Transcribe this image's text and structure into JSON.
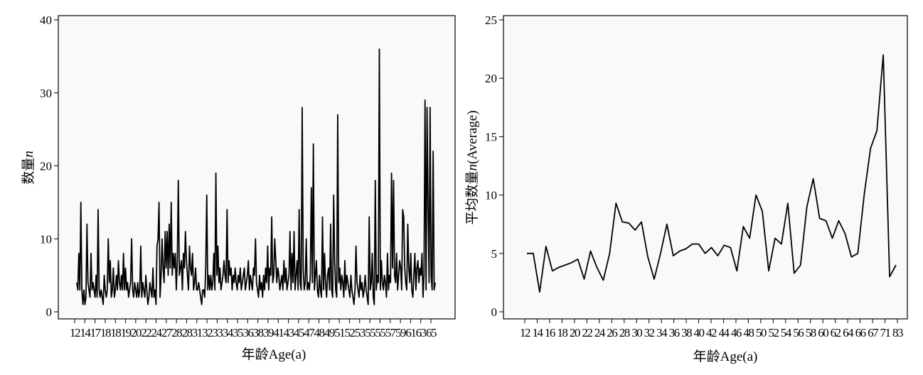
{
  "chart_data": [
    {
      "type": "line",
      "xlabel": "年龄Age(a)",
      "ylabel_main": "数量",
      "ylabel_italic": "n",
      "ylim": [
        0,
        40
      ],
      "yticks": [
        0,
        10,
        20,
        30,
        40
      ],
      "x_tick_labels": [
        "12",
        "14",
        "17",
        "18",
        "18",
        "19",
        "20",
        "22",
        "24",
        "27",
        "28",
        "28",
        "31",
        "32",
        "33",
        "34",
        "35",
        "36",
        "38",
        "39",
        "41",
        "43",
        "45",
        "47",
        "48",
        "49",
        "51",
        "52",
        "53",
        "55",
        "55",
        "57",
        "59",
        "61",
        "63",
        "65"
      ],
      "values": [
        4,
        3,
        8,
        3,
        15,
        3,
        1,
        3,
        1,
        2,
        12,
        4,
        3,
        2,
        8,
        3,
        4,
        3,
        2,
        5,
        2,
        14,
        3,
        2,
        3,
        2,
        1,
        5,
        3,
        2,
        3,
        10,
        4,
        7,
        2,
        3,
        6,
        2,
        3,
        5,
        3,
        7,
        4,
        3,
        5,
        3,
        8,
        3,
        6,
        3,
        4,
        2,
        3,
        4,
        10,
        3,
        2,
        4,
        3,
        2,
        4,
        2,
        3,
        9,
        2,
        4,
        3,
        2,
        5,
        3,
        1,
        2,
        4,
        3,
        2,
        6,
        2,
        3,
        1,
        9,
        10,
        15,
        2,
        5,
        10,
        6,
        4,
        11,
        6,
        11,
        5,
        12,
        6,
        15,
        5,
        8,
        6,
        8,
        3,
        7,
        18,
        5,
        6,
        7,
        3,
        8,
        6,
        11,
        7,
        5,
        3,
        9,
        6,
        5,
        8,
        3,
        4,
        6,
        3,
        3,
        4,
        3,
        2,
        1,
        3,
        3,
        2,
        6,
        16,
        3,
        5,
        3,
        5,
        3,
        4,
        8,
        3,
        19,
        5,
        9,
        4,
        6,
        3,
        4,
        5,
        7,
        5,
        4,
        14,
        4,
        7,
        5,
        6,
        3,
        5,
        4,
        6,
        4,
        3,
        5,
        4,
        6,
        3,
        4,
        5,
        6,
        3,
        4,
        5,
        7,
        3,
        5,
        4,
        3,
        6,
        5,
        10,
        4,
        3,
        2,
        5,
        3,
        4,
        2,
        5,
        3,
        6,
        4,
        9,
        3,
        6,
        5,
        13,
        4,
        5,
        10,
        7,
        4,
        6,
        5,
        3,
        4,
        5,
        3,
        7,
        4,
        6,
        3,
        4,
        5,
        11,
        3,
        8,
        4,
        11,
        3,
        5,
        7,
        3,
        14,
        4,
        3,
        28,
        6,
        3,
        4,
        10,
        3,
        4,
        3,
        5,
        17,
        4,
        23,
        3,
        5,
        7,
        3,
        2,
        5,
        3,
        2,
        13,
        3,
        8,
        4,
        2,
        5,
        6,
        3,
        12,
        3,
        2,
        16,
        7,
        3,
        2,
        27,
        4,
        6,
        3,
        5,
        4,
        2,
        7,
        3,
        5,
        4,
        3,
        2,
        5,
        3,
        2,
        1,
        3,
        9,
        4,
        3,
        2,
        5,
        3,
        4,
        2,
        3,
        5,
        3,
        2,
        1,
        13,
        3,
        4,
        8,
        2,
        1,
        18,
        3,
        5,
        4,
        36,
        3,
        7,
        4,
        3,
        5,
        4,
        2,
        8,
        3,
        5,
        4,
        19,
        6,
        18,
        5,
        4,
        8,
        3,
        5,
        7,
        6,
        3,
        14,
        13,
        6,
        4,
        3,
        12,
        6,
        4,
        8,
        3,
        2,
        5,
        8,
        3,
        6,
        7,
        4,
        6,
        5,
        8,
        2,
        5,
        29,
        3,
        28,
        14,
        4,
        28,
        5,
        3,
        22,
        3,
        4
      ]
    },
    {
      "type": "line",
      "xlabel": "年龄Age(a)",
      "ylabel_main": "平均数量",
      "ylabel_italic": "n",
      "ylabel_suffix": "(Average)",
      "ylim": [
        0,
        25
      ],
      "yticks": [
        0,
        5,
        10,
        15,
        20,
        25
      ],
      "x_tick_labels": [
        "12",
        "14",
        "16",
        "18",
        "20",
        "22",
        "24",
        "26",
        "28",
        "30",
        "32",
        "34",
        "36",
        "38",
        "40",
        "42",
        "44",
        "46",
        "48",
        "50",
        "52",
        "54",
        "56",
        "58",
        "60",
        "62",
        "64",
        "66",
        "67",
        "71",
        "83"
      ],
      "values": [
        5.0,
        5.0,
        1.7,
        5.6,
        3.5,
        3.8,
        4.0,
        4.2,
        4.5,
        2.8,
        5.2,
        3.8,
        2.7,
        5.0,
        9.3,
        7.7,
        7.6,
        7.0,
        7.7,
        4.7,
        2.8,
        5.0,
        7.5,
        4.8,
        5.2,
        5.4,
        5.8,
        5.8,
        5.0,
        5.5,
        4.8,
        5.7,
        5.5,
        3.5,
        7.3,
        6.3,
        10.0,
        8.6,
        3.5,
        6.3,
        5.8,
        9.3,
        3.3,
        4.0,
        9.0,
        11.4,
        8.0,
        7.8,
        6.3,
        7.8,
        6.7,
        4.7,
        5.0,
        10.0,
        14.0,
        15.5,
        22.0,
        3.0,
        4.0
      ]
    }
  ]
}
